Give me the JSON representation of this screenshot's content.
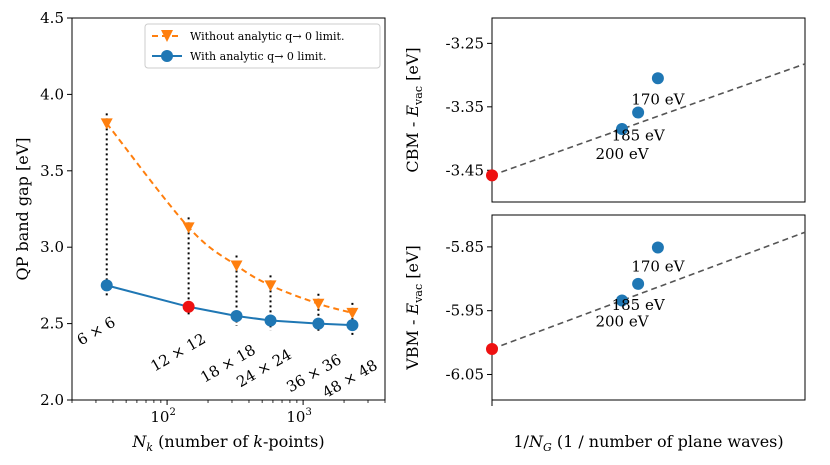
{
  "chart_data": [
    {
      "type": "line",
      "xscale": "log",
      "xlim": [
        20,
        4000
      ],
      "ylim": [
        2.0,
        4.5
      ],
      "xlabel": "N_k (number of k-points)",
      "xlabel_main": "N",
      "xlabel_sub": "k",
      "xlabel_rest": " (number of ",
      "xlabel_k": "k",
      "xlabel_tail": "-points)",
      "ylabel": "QP band gap [eV]",
      "x_ticks": [
        100,
        1000
      ],
      "x_tick_labels": [
        "10",
        "10"
      ],
      "x_tick_exponents": [
        "2",
        "3"
      ],
      "y_ticks": [
        "2.0",
        "2.5",
        "3.0",
        "3.5",
        "4.0",
        "4.5"
      ],
      "x": [
        36,
        144,
        324,
        576,
        1296,
        2304
      ],
      "grid_labels": [
        "6 × 6",
        "12 × 12",
        "18 × 18",
        "24 × 24",
        "36 × 36",
        "48 × 48"
      ],
      "series": [
        {
          "name": "Without analytic q→ 0 limit.",
          "values": [
            3.81,
            3.13,
            2.88,
            2.75,
            2.63,
            2.57
          ],
          "color": "#ff7f0e",
          "marker": "triangle-down",
          "linestyle": "dashed"
        },
        {
          "name": "With analytic q→ 0 limit.",
          "values": [
            2.75,
            2.61,
            2.55,
            2.52,
            2.5,
            2.49
          ],
          "color": "#1f77b4",
          "marker": "circle",
          "linestyle": "solid"
        }
      ],
      "highlight_color": "#ee1111",
      "legend": "top-right"
    },
    {
      "type": "scatter",
      "ylabel": "CBM - E_vac [eV]",
      "ylabel_pre": "CBM - ",
      "ylabel_var": "E",
      "ylabel_sub": "vac",
      "ylabel_post": " [eV]",
      "ylim": [
        -3.5,
        -3.21
      ],
      "y_ticks": [
        "-3.25",
        "-3.35",
        "-3.45"
      ],
      "points": [
        {
          "label": "200 eV",
          "cutoff_eV": 200,
          "y": -3.385
        },
        {
          "label": "185 eV",
          "cutoff_eV": 185,
          "y": -3.359
        },
        {
          "label": "170 eV",
          "cutoff_eV": 170,
          "y": -3.305
        }
      ],
      "extrapolated": -3.458,
      "point_color": "#1f77b4",
      "extrapolated_color": "#ee1111",
      "fit_color": "#555555"
    },
    {
      "type": "scatter",
      "ylabel": "VBM - E_vac [eV]",
      "ylabel_pre": "VBM - ",
      "ylabel_var": "E",
      "ylabel_sub": "vac",
      "ylabel_post": " [eV]",
      "xlabel": "1/N_G (1 / number of plane waves)",
      "xlabel_pre": "1/",
      "xlabel_main": "N",
      "xlabel_sub": "G",
      "xlabel_rest": " (1 / number of plane waves)",
      "ylim": [
        -6.09,
        -5.8
      ],
      "y_ticks": [
        "-5.85",
        "-5.95",
        "-6.05"
      ],
      "points": [
        {
          "label": "200 eV",
          "cutoff_eV": 200,
          "y": -5.934
        },
        {
          "label": "185 eV",
          "cutoff_eV": 185,
          "y": -5.908
        },
        {
          "label": "170 eV",
          "cutoff_eV": 170,
          "y": -5.851
        }
      ],
      "extrapolated": -6.01,
      "point_color": "#1f77b4",
      "extrapolated_color": "#ee1111",
      "fit_color": "#555555"
    }
  ]
}
